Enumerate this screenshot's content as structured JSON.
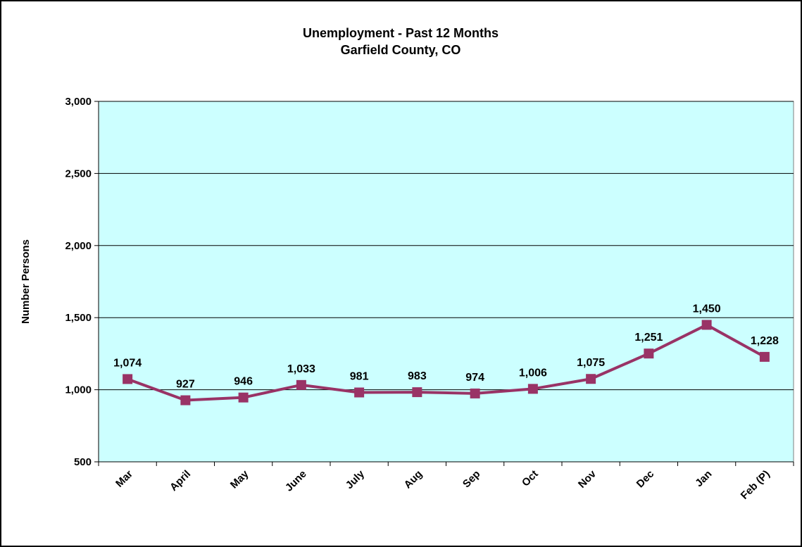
{
  "chart_data": {
    "type": "line",
    "title": "Unemployment - Past 12 Months",
    "subtitle": "Garfield County, CO",
    "y_label": "Number Persons",
    "categories": [
      "Mar",
      "April",
      "May",
      "June",
      "July",
      "Aug",
      "Sep",
      "Oct",
      "Nov",
      "Dec",
      "Jan",
      "Feb (P)"
    ],
    "series": [
      {
        "name": "Unemployment",
        "color": "#993366",
        "values": [
          1074,
          927,
          946,
          1033,
          981,
          983,
          974,
          1006,
          1075,
          1251,
          1450,
          1228
        ],
        "value_labels": [
          "1,074",
          "927",
          "946",
          "1,033",
          "981",
          "983",
          "974",
          "1,006",
          "1,075",
          "1,251",
          "1,450",
          "1,228"
        ]
      }
    ],
    "ylim": [
      500,
      3000
    ],
    "yticks": [
      500,
      {
        "value": 1000,
        "label": "1,000"
      },
      {
        "value": 1500,
        "label": "1,500"
      },
      {
        "value": 2000,
        "label": "2,000"
      },
      {
        "value": 2500,
        "label": "2,500"
      },
      {
        "value": 3000,
        "label": "3,000"
      }
    ],
    "grid": true,
    "plot_background": "#ccffff"
  }
}
